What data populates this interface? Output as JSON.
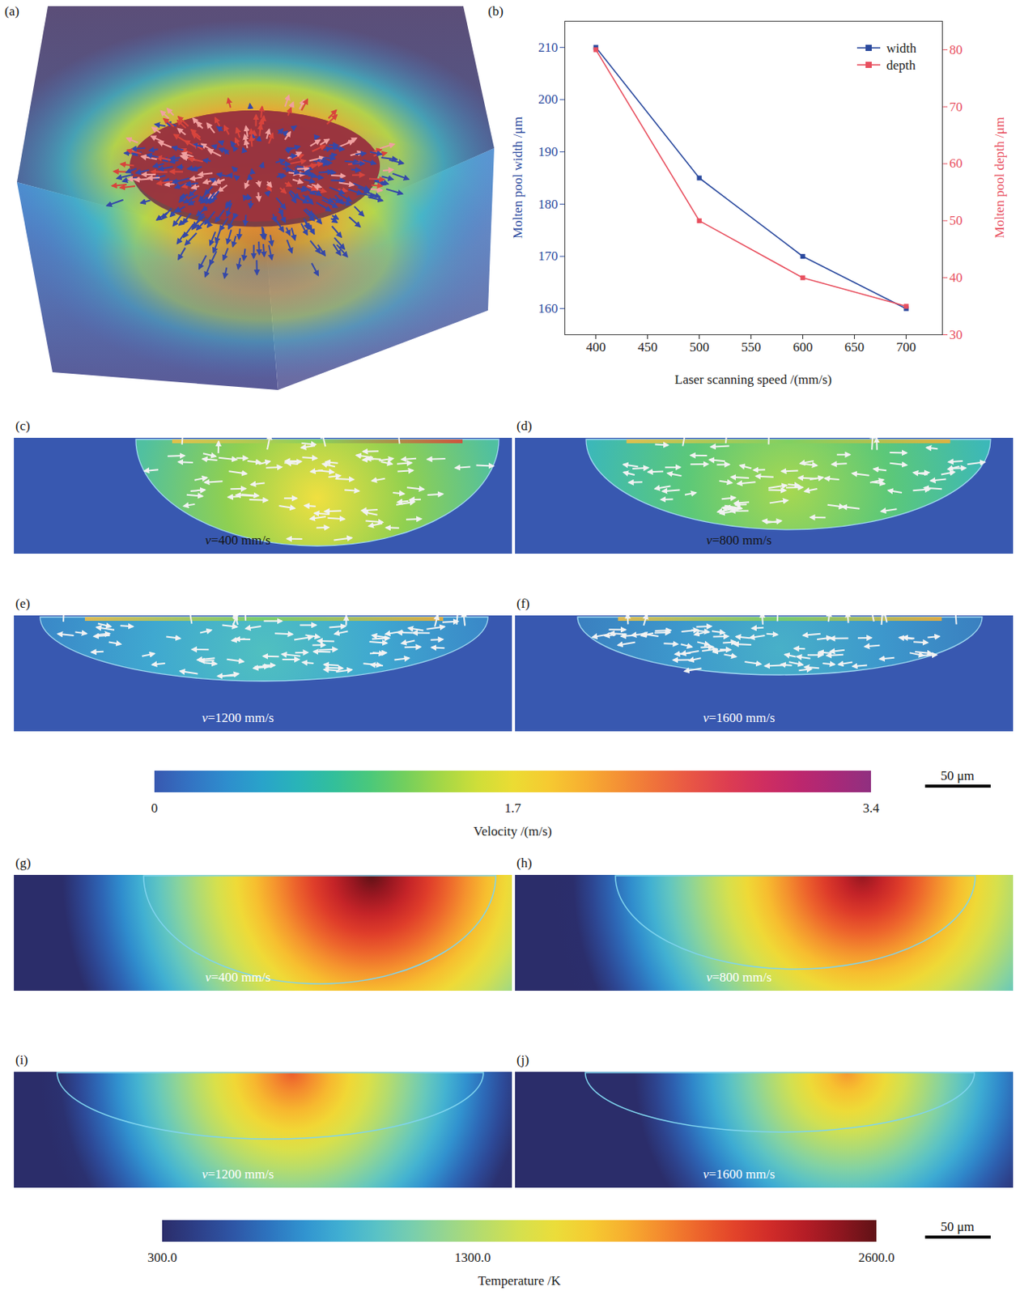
{
  "chart_data": {
    "type": "line",
    "panel_label": "(b)",
    "x_label": "Laser scanning speed /(mm/s)",
    "y_label": "Molten pool width /μm",
    "y2_label": "Molten pool depth /μm",
    "x": [
      400,
      500,
      600,
      700
    ],
    "series": [
      {
        "name": "width",
        "color": "#2b4a9e",
        "marker": "square",
        "values": [
          210,
          185,
          170,
          160
        ]
      },
      {
        "name": "depth",
        "color": "#e8505f",
        "marker": "square",
        "axis": "y2",
        "values": [
          80,
          50,
          40,
          35
        ]
      }
    ],
    "xlim": [
      370,
      735
    ],
    "xticks": [
      400,
      450,
      500,
      550,
      600,
      650,
      700
    ],
    "ylim": [
      155,
      215
    ],
    "yticks": [
      160,
      170,
      180,
      190,
      200,
      210
    ],
    "y2lim": [
      30,
      85
    ],
    "y2ticks": [
      30,
      40,
      50,
      60,
      70,
      80
    ],
    "legend": "top-right",
    "grid": false
  },
  "figure": {
    "panel_a": {
      "label": "(a)"
    },
    "velocity_fields": [
      {
        "label": "(c)",
        "speed": "v=400 mm/s"
      },
      {
        "label": "(d)",
        "speed": "v=800 mm/s"
      },
      {
        "label": "(e)",
        "speed": "v=1200 mm/s"
      },
      {
        "label": "(f)",
        "speed": "v=1600 mm/s"
      }
    ],
    "velocity_colorbar": {
      "label": "Velocity /(m/s)",
      "range": [
        0,
        3.4
      ],
      "ticks": [
        0,
        1.7,
        3.4
      ]
    },
    "temperature_fields": [
      {
        "label": "(g)",
        "speed": "v=400 mm/s"
      },
      {
        "label": "(h)",
        "speed": "v=800 mm/s"
      },
      {
        "label": "(i)",
        "speed": "v=1200 mm/s"
      },
      {
        "label": "(j)",
        "speed": "v=1600 mm/s"
      }
    ],
    "temperature_colorbar": {
      "label": "Temperature /K",
      "range": [
        300,
        2600
      ],
      "ticks": [
        {
          "value": 300,
          "label": "300.0"
        },
        {
          "value": 1300,
          "label": "1300.0"
        },
        {
          "value": 2600,
          "label": "2600.0"
        }
      ]
    },
    "scale_bar": "50 μm"
  }
}
